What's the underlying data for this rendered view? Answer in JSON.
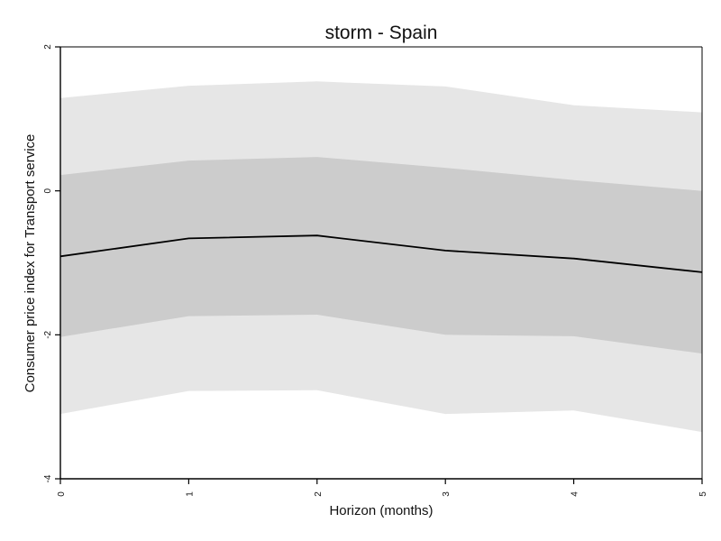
{
  "chart_data": {
    "type": "area",
    "title": "storm - Spain",
    "xlabel": "Horizon (months)",
    "ylabel": "Consumer price index for Transport service",
    "x": [
      0,
      1,
      2,
      3,
      4,
      5
    ],
    "xticks": [
      "0",
      "1",
      "2",
      "3",
      "4",
      "5"
    ],
    "yticks": [
      "2",
      "0",
      "-2",
      "-4"
    ],
    "ytick_values": [
      2,
      0,
      -2,
      -4
    ],
    "xlim": [
      0,
      5
    ],
    "ylim": [
      -4,
      2
    ],
    "grid": false,
    "series": [
      {
        "role": "outer_band_upper",
        "values": [
          1.29,
          1.46,
          1.52,
          1.45,
          1.19,
          1.09
        ]
      },
      {
        "role": "inner_band_upper",
        "values": [
          0.22,
          0.42,
          0.47,
          0.32,
          0.15,
          0.0
        ]
      },
      {
        "role": "estimate",
        "values": [
          -0.91,
          -0.66,
          -0.62,
          -0.83,
          -0.94,
          -1.13
        ]
      },
      {
        "role": "inner_band_lower",
        "values": [
          -2.03,
          -1.74,
          -1.72,
          -2.0,
          -2.02,
          -2.26
        ]
      },
      {
        "role": "outer_band_lower",
        "values": [
          -3.1,
          -2.78,
          -2.77,
          -3.1,
          -3.05,
          -3.35
        ]
      }
    ],
    "colors": {
      "outer_band": "#e6e6e6",
      "inner_band": "#cccccc",
      "line": "#000000"
    }
  }
}
